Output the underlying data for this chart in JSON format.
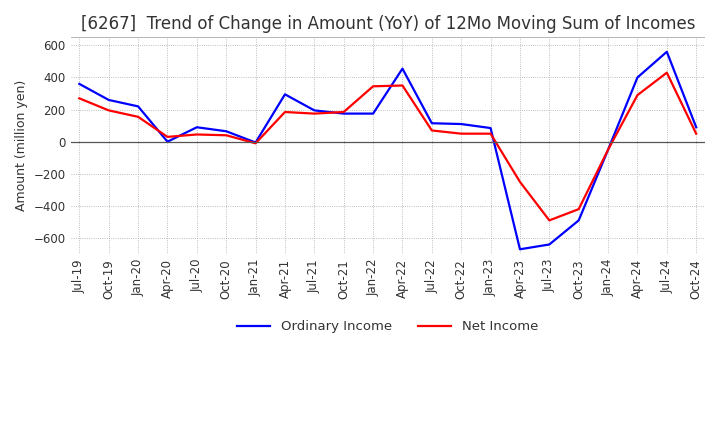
{
  "title": "[6267]  Trend of Change in Amount (YoY) of 12Mo Moving Sum of Incomes",
  "ylabel": "Amount (million yen)",
  "ylim": [
    -700,
    650
  ],
  "yticks": [
    -600,
    -400,
    -200,
    0,
    200,
    400,
    600
  ],
  "legend_labels": [
    "Ordinary Income",
    "Net Income"
  ],
  "line_colors": [
    "blue",
    "red"
  ],
  "x_labels": [
    "Jul-19",
    "Oct-19",
    "Jan-20",
    "Apr-20",
    "Jul-20",
    "Oct-20",
    "Jan-21",
    "Apr-21",
    "Jul-21",
    "Oct-21",
    "Jan-22",
    "Apr-22",
    "Jul-22",
    "Oct-22",
    "Jan-23",
    "Apr-23",
    "Jul-23",
    "Oct-23",
    "Jan-24",
    "Apr-24",
    "Jul-24",
    "Oct-24"
  ],
  "ordinary_income": [
    360,
    260,
    220,
    0,
    90,
    65,
    -5,
    295,
    195,
    175,
    175,
    455,
    115,
    110,
    85,
    -670,
    -640,
    -490,
    -50,
    400,
    560,
    90
  ],
  "net_income": [
    270,
    195,
    155,
    30,
    45,
    40,
    -10,
    185,
    175,
    185,
    345,
    350,
    70,
    50,
    50,
    -250,
    -490,
    -420,
    -50,
    290,
    430,
    50
  ],
  "background_color": "#ffffff",
  "grid_color": "#aaaaaa",
  "title_fontsize": 12,
  "axis_fontsize": 9,
  "tick_fontsize": 8.5
}
